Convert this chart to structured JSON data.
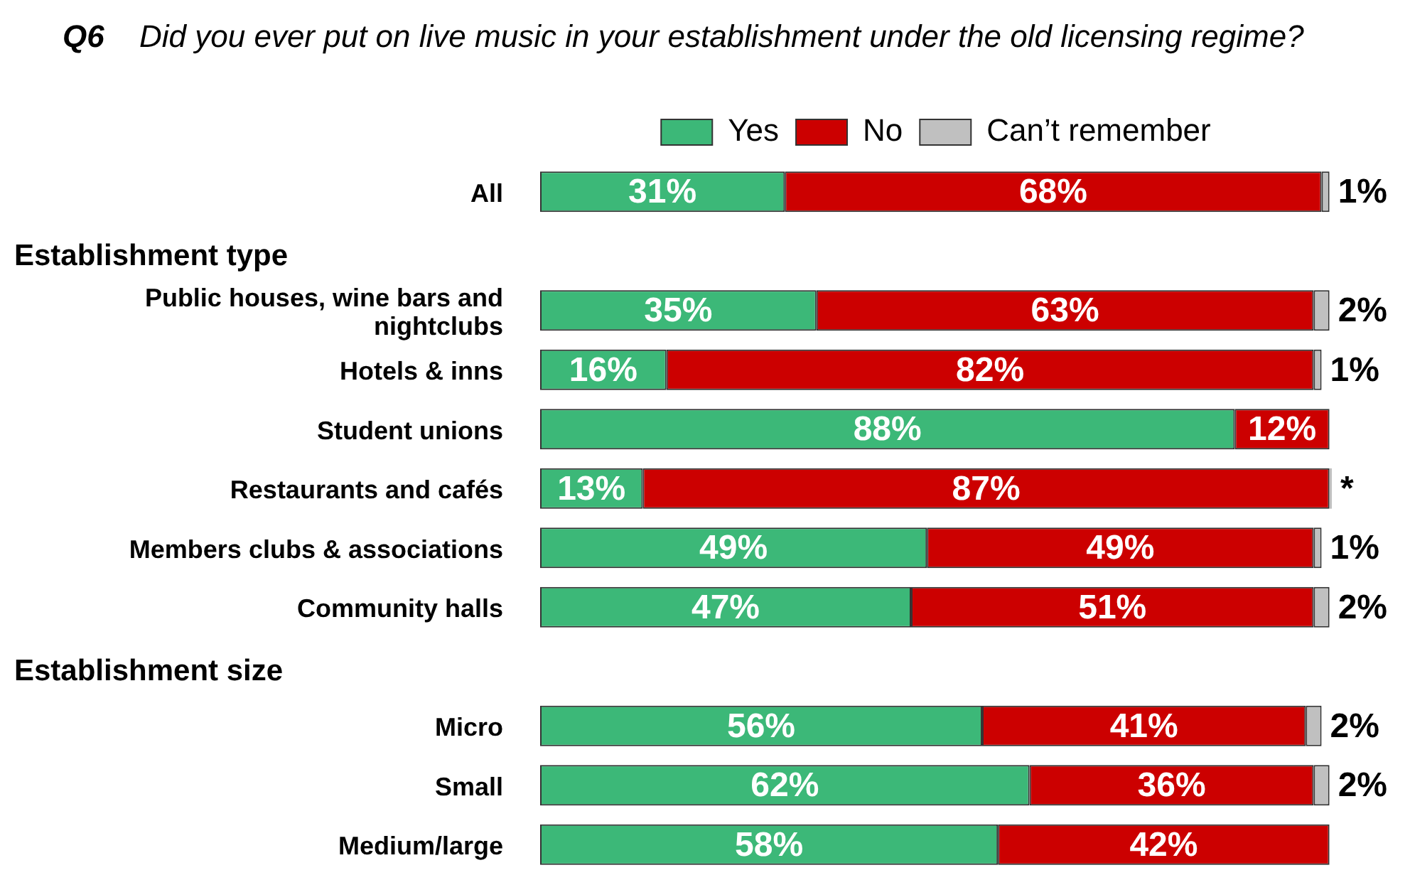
{
  "chart_data": {
    "type": "bar",
    "orientation": "horizontal",
    "stacked": true,
    "title": "Q6 Did you ever put on live music in your establishment under the old licensing regime?",
    "categories": [
      "All",
      null,
      "Public houses, wine bars and nightclubs",
      "Hotels & inns",
      "Student unions",
      "Restaurants and cafés",
      "Members clubs & associations",
      "Community halls",
      null,
      "Micro",
      "Small",
      "Medium/large"
    ],
    "series": [
      {
        "name": "Yes",
        "color": "#3cb878",
        "values": [
          31,
          null,
          35,
          16,
          88,
          13,
          49,
          47,
          null,
          56,
          62,
          58
        ],
        "value_labels": [
          "31%",
          null,
          "35%",
          "16%",
          "88%",
          "13%",
          "49%",
          "47%",
          null,
          "56%",
          "62%",
          "58%"
        ]
      },
      {
        "name": "No",
        "color": "#cc0000",
        "values": [
          68,
          null,
          63,
          82,
          12,
          87,
          49,
          51,
          null,
          41,
          36,
          42
        ],
        "value_labels": [
          "68%",
          null,
          "63%",
          "82%",
          "12%",
          "87%",
          "49%",
          "51%",
          null,
          "41%",
          "36%",
          "42%"
        ]
      },
      {
        "name": "Can’t remember",
        "color": "#c0c0c0",
        "values": [
          1,
          null,
          2,
          1,
          null,
          0.3,
          1,
          2,
          null,
          2,
          2,
          null
        ],
        "value_labels": [
          "1%",
          null,
          "2%",
          "1%",
          null,
          "*",
          "1%",
          "2%",
          null,
          "2%",
          "2%",
          null
        ]
      }
    ],
    "annotations": [
      "Establishment type",
      "Establishment size"
    ],
    "legend": "top"
  }
}
